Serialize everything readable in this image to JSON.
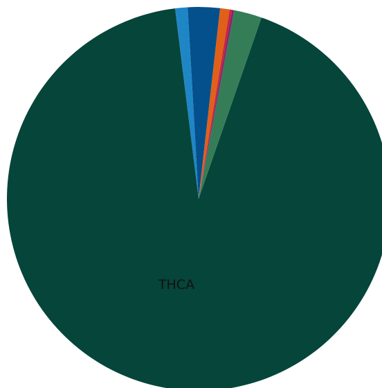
{
  "chart_data": {
    "type": "pie",
    "start": "top",
    "direction": "clockwise",
    "slices": [
      {
        "label": "THCA",
        "show_label": true,
        "percent": 92.72,
        "color": "#05453a"
      },
      {
        "label": "",
        "show_label": false,
        "percent": 1.05,
        "color": "#1f86c6"
      },
      {
        "label": "",
        "show_label": false,
        "percent": 2.7,
        "color": "#04508c"
      },
      {
        "label": "",
        "show_label": false,
        "percent": 0.8,
        "color": "#e0601a"
      },
      {
        "label": "",
        "show_label": false,
        "percent": 0.2,
        "color": "#c8263c"
      },
      {
        "label": "",
        "show_label": false,
        "percent": 0.18,
        "color": "#8b1f6e"
      },
      {
        "label": "",
        "show_label": false,
        "percent": 2.35,
        "color": "#347d57"
      }
    ]
  }
}
